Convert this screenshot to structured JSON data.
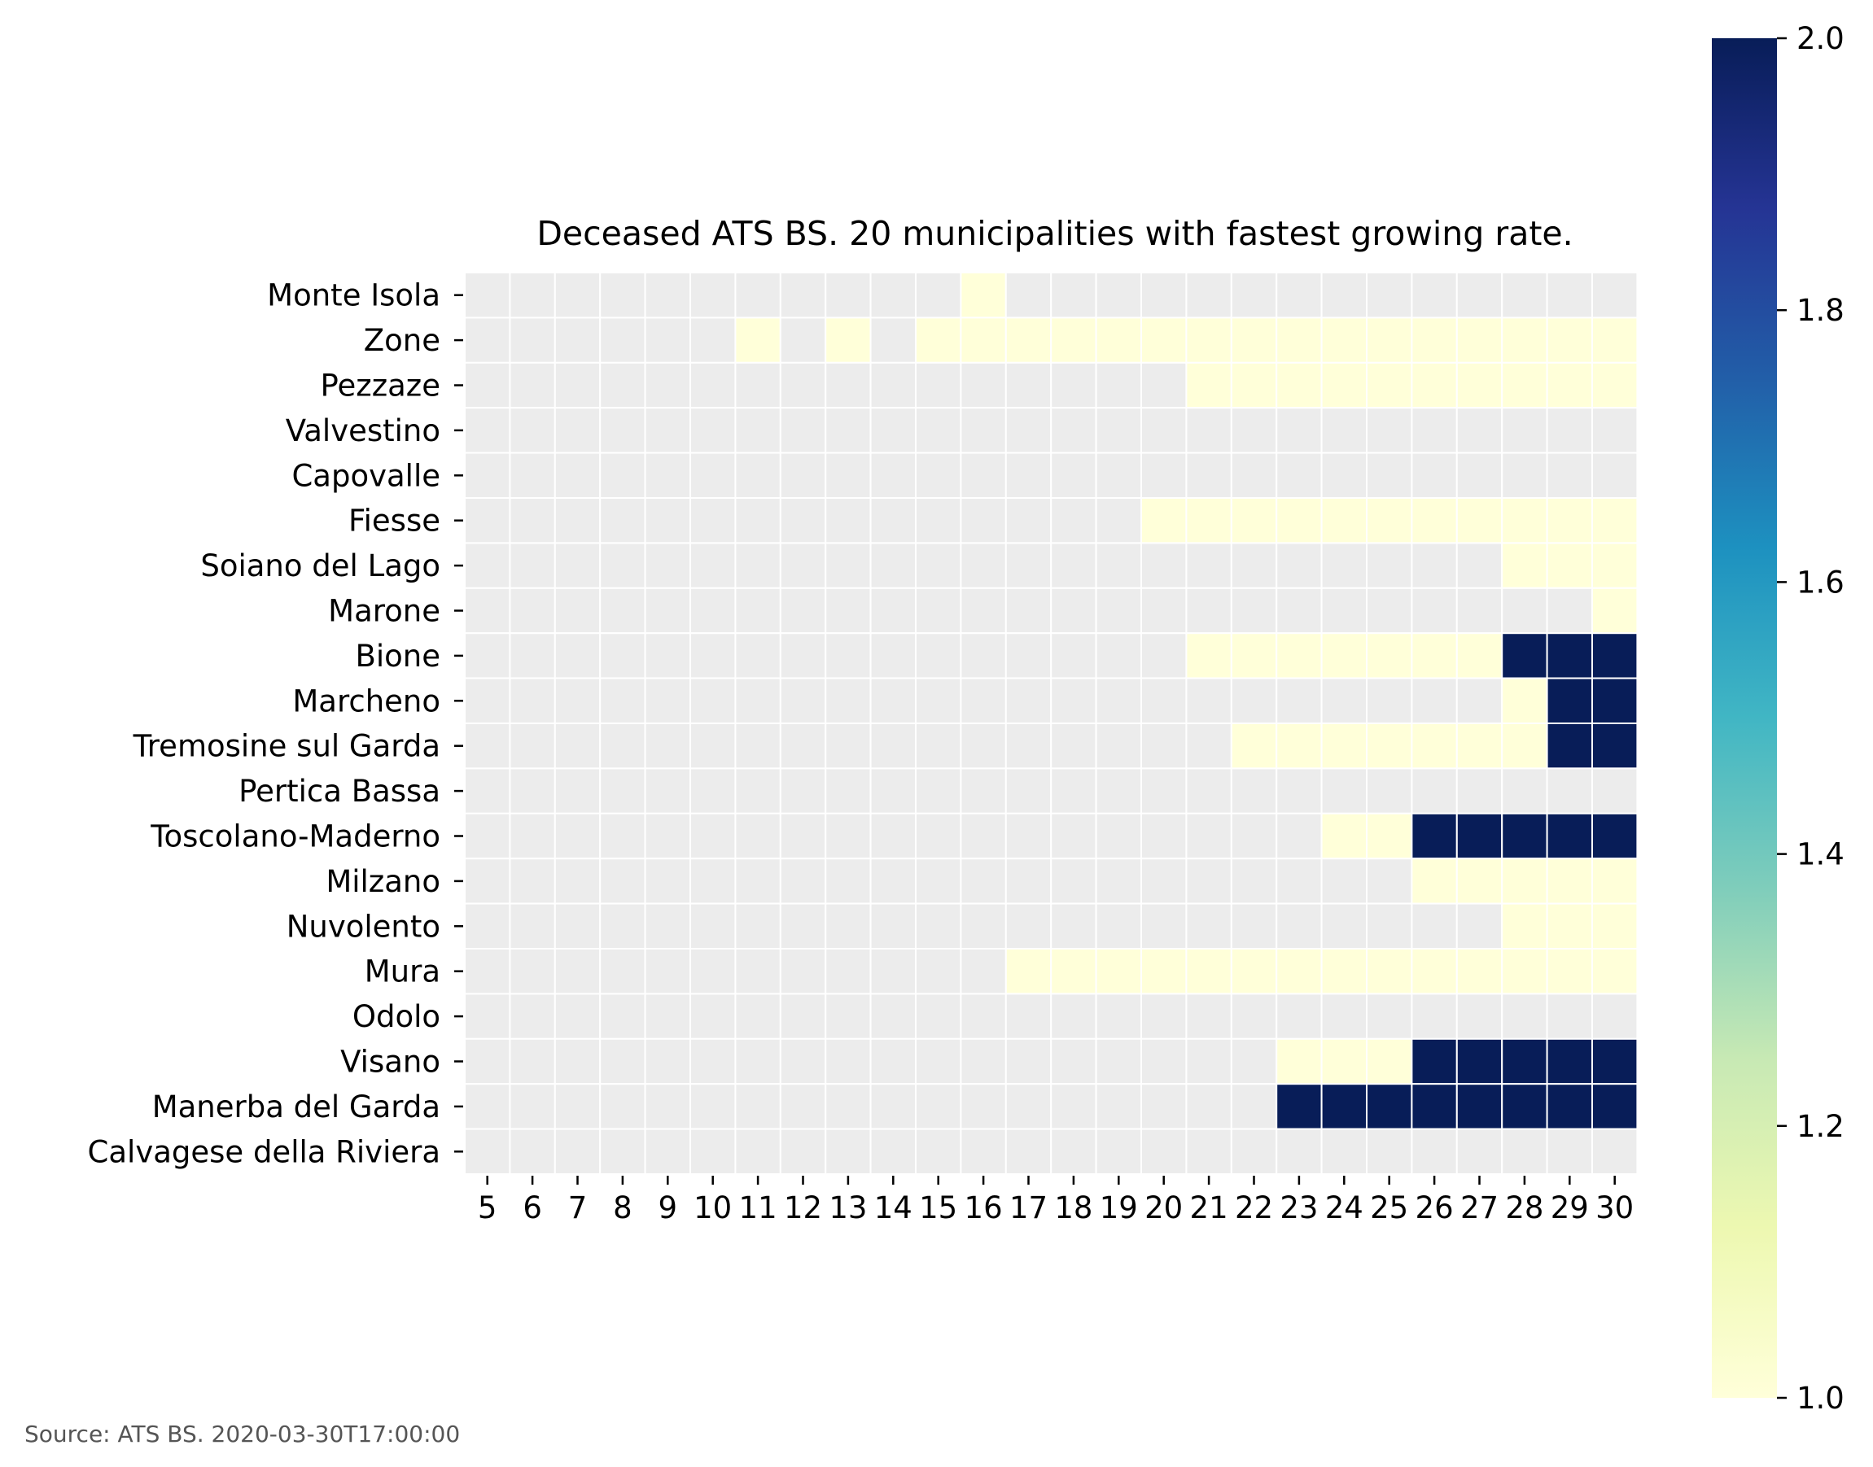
{
  "chart_data": {
    "type": "heatmap",
    "title": "Deceased ATS BS. 20 municipalities with fastest growing rate.",
    "source": "Source: ATS BS. 2020-03-30T17:00:00",
    "x": [
      "5",
      "6",
      "7",
      "8",
      "9",
      "10",
      "11",
      "12",
      "13",
      "14",
      "15",
      "16",
      "17",
      "18",
      "19",
      "20",
      "21",
      "22",
      "23",
      "24",
      "25",
      "26",
      "27",
      "28",
      "29",
      "30"
    ],
    "y": [
      "Monte Isola",
      "Zone",
      "Pezzaze",
      "Valvestino",
      "Capovalle",
      "Fiesse",
      "Soiano del Lago",
      "Marone",
      "Bione",
      "Marcheno",
      "Tremosine sul Garda",
      "Pertica Bassa",
      "Toscolano-Maderno",
      "Milzano",
      "Nuvolento",
      "Mura",
      "Odolo",
      "Visano",
      "Manerba del Garda",
      "Calvagese della Riviera"
    ],
    "values": [
      [
        0,
        0,
        0,
        0,
        0,
        0,
        0,
        0,
        0,
        0,
        0,
        1,
        0,
        0,
        0,
        0,
        0,
        0,
        0,
        0,
        0,
        0,
        0,
        0,
        0,
        0
      ],
      [
        0,
        0,
        0,
        0,
        0,
        0,
        1,
        0,
        1,
        0,
        1,
        1,
        1,
        1,
        1,
        1,
        1,
        1,
        1,
        1,
        1,
        1,
        1,
        1,
        1,
        1
      ],
      [
        0,
        0,
        0,
        0,
        0,
        0,
        0,
        0,
        0,
        0,
        0,
        0,
        0,
        0,
        0,
        0,
        1,
        1,
        1,
        1,
        1,
        1,
        1,
        1,
        1,
        1
      ],
      [
        0,
        0,
        0,
        0,
        0,
        0,
        0,
        0,
        0,
        0,
        0,
        0,
        0,
        0,
        0,
        0,
        0,
        0,
        0,
        0,
        0,
        0,
        0,
        0,
        0,
        0
      ],
      [
        0,
        0,
        0,
        0,
        0,
        0,
        0,
        0,
        0,
        0,
        0,
        0,
        0,
        0,
        0,
        0,
        0,
        0,
        0,
        0,
        0,
        0,
        0,
        0,
        0,
        0
      ],
      [
        0,
        0,
        0,
        0,
        0,
        0,
        0,
        0,
        0,
        0,
        0,
        0,
        0,
        0,
        0,
        1,
        1,
        1,
        1,
        1,
        1,
        1,
        1,
        1,
        1,
        1
      ],
      [
        0,
        0,
        0,
        0,
        0,
        0,
        0,
        0,
        0,
        0,
        0,
        0,
        0,
        0,
        0,
        0,
        0,
        0,
        0,
        0,
        0,
        0,
        0,
        1,
        1,
        1
      ],
      [
        0,
        0,
        0,
        0,
        0,
        0,
        0,
        0,
        0,
        0,
        0,
        0,
        0,
        0,
        0,
        0,
        0,
        0,
        0,
        0,
        0,
        0,
        0,
        0,
        0,
        1
      ],
      [
        0,
        0,
        0,
        0,
        0,
        0,
        0,
        0,
        0,
        0,
        0,
        0,
        0,
        0,
        0,
        0,
        1,
        1,
        1,
        1,
        1,
        1,
        1,
        2,
        2,
        2
      ],
      [
        0,
        0,
        0,
        0,
        0,
        0,
        0,
        0,
        0,
        0,
        0,
        0,
        0,
        0,
        0,
        0,
        0,
        0,
        0,
        0,
        0,
        0,
        0,
        1,
        2,
        2
      ],
      [
        0,
        0,
        0,
        0,
        0,
        0,
        0,
        0,
        0,
        0,
        0,
        0,
        0,
        0,
        0,
        0,
        0,
        1,
        1,
        1,
        1,
        1,
        1,
        1,
        2,
        2
      ],
      [
        0,
        0,
        0,
        0,
        0,
        0,
        0,
        0,
        0,
        0,
        0,
        0,
        0,
        0,
        0,
        0,
        0,
        0,
        0,
        0,
        0,
        0,
        0,
        0,
        0,
        0
      ],
      [
        0,
        0,
        0,
        0,
        0,
        0,
        0,
        0,
        0,
        0,
        0,
        0,
        0,
        0,
        0,
        0,
        0,
        0,
        0,
        1,
        1,
        2,
        2,
        2,
        2,
        2
      ],
      [
        0,
        0,
        0,
        0,
        0,
        0,
        0,
        0,
        0,
        0,
        0,
        0,
        0,
        0,
        0,
        0,
        0,
        0,
        0,
        0,
        0,
        1,
        1,
        1,
        1,
        1
      ],
      [
        0,
        0,
        0,
        0,
        0,
        0,
        0,
        0,
        0,
        0,
        0,
        0,
        0,
        0,
        0,
        0,
        0,
        0,
        0,
        0,
        0,
        0,
        0,
        1,
        1,
        1
      ],
      [
        0,
        0,
        0,
        0,
        0,
        0,
        0,
        0,
        0,
        0,
        0,
        0,
        1,
        1,
        1,
        1,
        1,
        1,
        1,
        1,
        1,
        1,
        1,
        1,
        1,
        1
      ],
      [
        0,
        0,
        0,
        0,
        0,
        0,
        0,
        0,
        0,
        0,
        0,
        0,
        0,
        0,
        0,
        0,
        0,
        0,
        0,
        0,
        0,
        0,
        0,
        0,
        0,
        0
      ],
      [
        0,
        0,
        0,
        0,
        0,
        0,
        0,
        0,
        0,
        0,
        0,
        0,
        0,
        0,
        0,
        0,
        0,
        0,
        1,
        1,
        1,
        2,
        2,
        2,
        2,
        2
      ],
      [
        0,
        0,
        0,
        0,
        0,
        0,
        0,
        0,
        0,
        0,
        0,
        0,
        0,
        0,
        0,
        0,
        0,
        0,
        2,
        2,
        2,
        2,
        2,
        2,
        2,
        2
      ],
      [
        0,
        0,
        0,
        0,
        0,
        0,
        0,
        0,
        0,
        0,
        0,
        0,
        0,
        0,
        0,
        0,
        0,
        0,
        0,
        0,
        0,
        0,
        0,
        0,
        0,
        0
      ]
    ],
    "missing_value_note": "cells with 0 are drawn in the masked (light grey) color",
    "colorbar": {
      "vmin": 1.0,
      "vmax": 2.0,
      "ticks": [
        "1.0",
        "1.2",
        "1.4",
        "1.6",
        "1.8",
        "2.0"
      ],
      "colormap": "YlGnBu"
    },
    "colors": {
      "masked": "#ececec",
      "grid_line": "#ffffff"
    }
  }
}
